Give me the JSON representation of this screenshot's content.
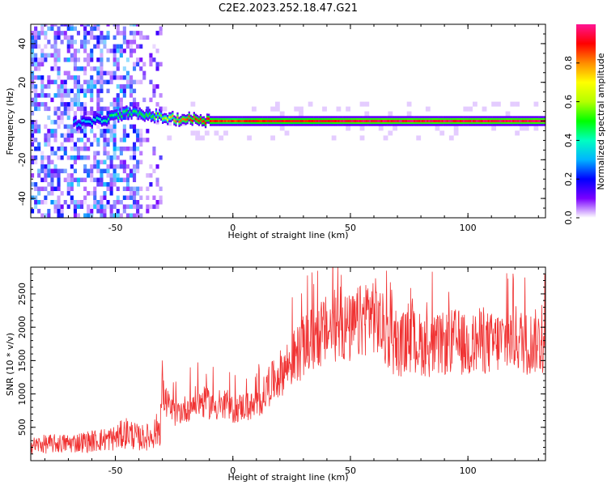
{
  "title": "C2E2.2023.252.18.47.G21",
  "chart_data": [
    {
      "type": "heatmap",
      "xlabel": "Height of straight line (km)",
      "ylabel": "Frequency (Hz)",
      "xlim": [
        -86,
        133
      ],
      "ylim": [
        -50,
        50
      ],
      "xticks": [
        -50,
        0,
        50,
        100
      ],
      "yticks": [
        -40,
        -20,
        0,
        20,
        40
      ],
      "colorbar": {
        "label": "Normalized spectral amplitude",
        "range": [
          0.0,
          1.0
        ],
        "ticks": [
          0.0,
          0.2,
          0.4,
          0.6,
          0.8
        ],
        "colormap": [
          "#ffffff",
          "#7a00ff",
          "#0000ff",
          "#00b4ff",
          "#00ffc0",
          "#00ff00",
          "#b4ff00",
          "#ffff00",
          "#ff8c00",
          "#ff0000",
          "#ff1493"
        ]
      },
      "ridge": {
        "description_points_x": [
          -68,
          -62,
          -55,
          -48,
          -44,
          -40,
          -35,
          -30,
          -25,
          -20,
          -15,
          -10,
          0,
          10,
          20,
          30,
          50,
          70,
          100,
          133
        ],
        "frequency_hz": [
          -1,
          -1,
          1,
          3,
          5,
          3,
          3,
          2,
          1,
          1,
          1,
          0,
          0,
          0,
          0,
          0,
          0,
          0,
          0,
          0
        ],
        "amplitude": [
          0.3,
          0.35,
          0.4,
          0.5,
          0.45,
          0.5,
          0.5,
          0.6,
          0.8,
          0.85,
          0.9,
          0.9,
          0.85,
          0.9,
          0.9,
          0.9,
          0.95,
          0.95,
          0.95,
          0.95
        ]
      }
    },
    {
      "type": "line",
      "xlabel": "Height of straight line (km)",
      "ylabel": "SNR (10 * v/v)",
      "xlim": [
        -86,
        133
      ],
      "ylim": [
        0,
        2900
      ],
      "xticks": [
        -50,
        0,
        50,
        100
      ],
      "yticks": [
        500,
        1000,
        1500,
        2000,
        2500
      ],
      "series": [
        {
          "color": "#f03232",
          "x": [
            -86,
            -80,
            -70,
            -60,
            -50,
            -45,
            -40,
            -35,
            -31,
            -30,
            -28,
            -25,
            -20,
            -15,
            -10,
            -5,
            0,
            5,
            10,
            15,
            20,
            25,
            30,
            35,
            40,
            45,
            50,
            55,
            58,
            60,
            65,
            70,
            75,
            80,
            85,
            90,
            95,
            100,
            105,
            110,
            115,
            120,
            125,
            130,
            133
          ],
          "y": [
            200,
            220,
            230,
            260,
            300,
            380,
            300,
            320,
            450,
            1000,
            850,
            700,
            780,
            900,
            850,
            800,
            760,
            820,
            800,
            1100,
            1300,
            1500,
            1700,
            1850,
            1950,
            2050,
            1950,
            2100,
            2250,
            2200,
            1900,
            1700,
            1800,
            1750,
            1700,
            1750,
            1800,
            1700,
            1800,
            1750,
            1800,
            1850,
            1750,
            1800,
            1700
          ]
        }
      ]
    }
  ]
}
